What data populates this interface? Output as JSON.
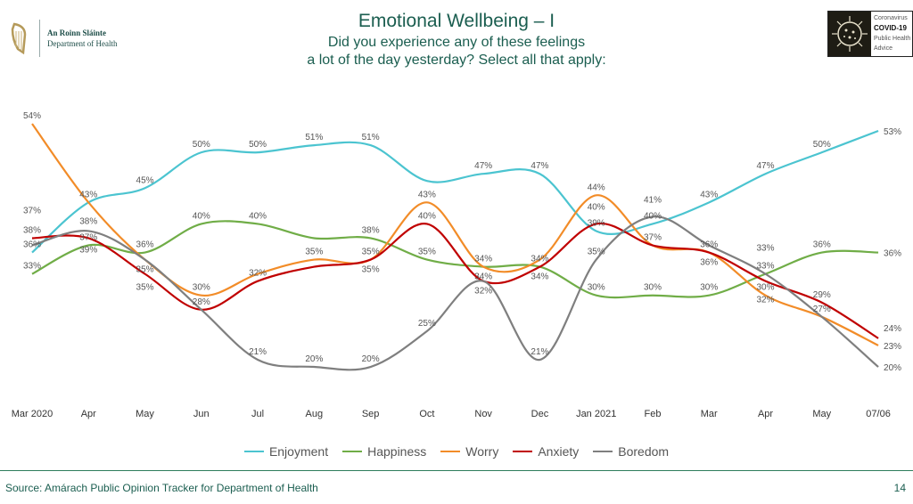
{
  "header": {
    "org_irish": "An Roinn Sláinte",
    "org_english": "Department of Health",
    "badge_line1": "Coronavirus",
    "badge_line2": "COVID-19",
    "badge_line3": "Public Health",
    "badge_line4": "Advice"
  },
  "chart_data": {
    "type": "line",
    "title": "Emotional Wellbeing – I",
    "subtitle_line1": "Did you experience any of these feelings",
    "subtitle_line2": "a lot of the day yesterday? Select all that apply:",
    "xlabel": "",
    "ylabel": "",
    "ylim": [
      20,
      54
    ],
    "grid": false,
    "legend_position": "bottom",
    "categories": [
      "Mar 2020",
      "Apr",
      "May",
      "Jun",
      "Jul",
      "Aug",
      "Sep",
      "Oct",
      "Nov",
      "Dec",
      "Jan 2021",
      "Feb",
      "Mar",
      "Apr",
      "May",
      "07/06"
    ],
    "series": [
      {
        "name": "Enjoyment",
        "color": "#4BC4D0",
        "values": [
          36,
          43,
          45,
          50,
          50,
          51,
          51,
          46,
          47,
          47,
          39,
          40,
          43,
          47,
          50,
          53
        ],
        "labeled": [
          1,
          1,
          1,
          1,
          1,
          1,
          1,
          0,
          1,
          1,
          1,
          1,
          1,
          1,
          1,
          1
        ]
      },
      {
        "name": "Happiness",
        "color": "#70AD47",
        "values": [
          33,
          37,
          36,
          40,
          40,
          38,
          38,
          35,
          34,
          34,
          30,
          30,
          30,
          33,
          36,
          36
        ],
        "labeled": [
          1,
          1,
          1,
          1,
          1,
          0,
          1,
          1,
          1,
          1,
          1,
          1,
          1,
          1,
          1,
          1
        ]
      },
      {
        "name": "Worry",
        "color": "#F28C28",
        "values": [
          54,
          43,
          35,
          30,
          33,
          35,
          35,
          43,
          34,
          35,
          44,
          37,
          36,
          30,
          27,
          23
        ],
        "labeled": [
          1,
          0,
          1,
          1,
          0,
          1,
          1,
          1,
          1,
          0,
          1,
          1,
          1,
          1,
          1,
          1
        ]
      },
      {
        "name": "Anxiety",
        "color": "#C00000",
        "values": [
          38,
          38,
          33,
          28,
          32,
          34,
          35,
          40,
          32,
          34,
          40,
          37,
          36,
          32,
          29,
          24
        ],
        "labeled": [
          1,
          1,
          0,
          1,
          1,
          0,
          1,
          1,
          1,
          1,
          1,
          0,
          1,
          1,
          1,
          1
        ]
      },
      {
        "name": "Boredom",
        "color": "#7F7F7F",
        "values": [
          37,
          39,
          35,
          28,
          21,
          20,
          20,
          25,
          32,
          21,
          35,
          41,
          37,
          33,
          27,
          20
        ],
        "labeled": [
          1,
          1,
          1,
          0,
          1,
          1,
          1,
          1,
          0,
          1,
          1,
          1,
          0,
          1,
          0,
          1
        ]
      }
    ]
  },
  "footer": {
    "source": "Source: Amárach Public Opinion Tracker for Department of Health",
    "page_number": "14"
  }
}
